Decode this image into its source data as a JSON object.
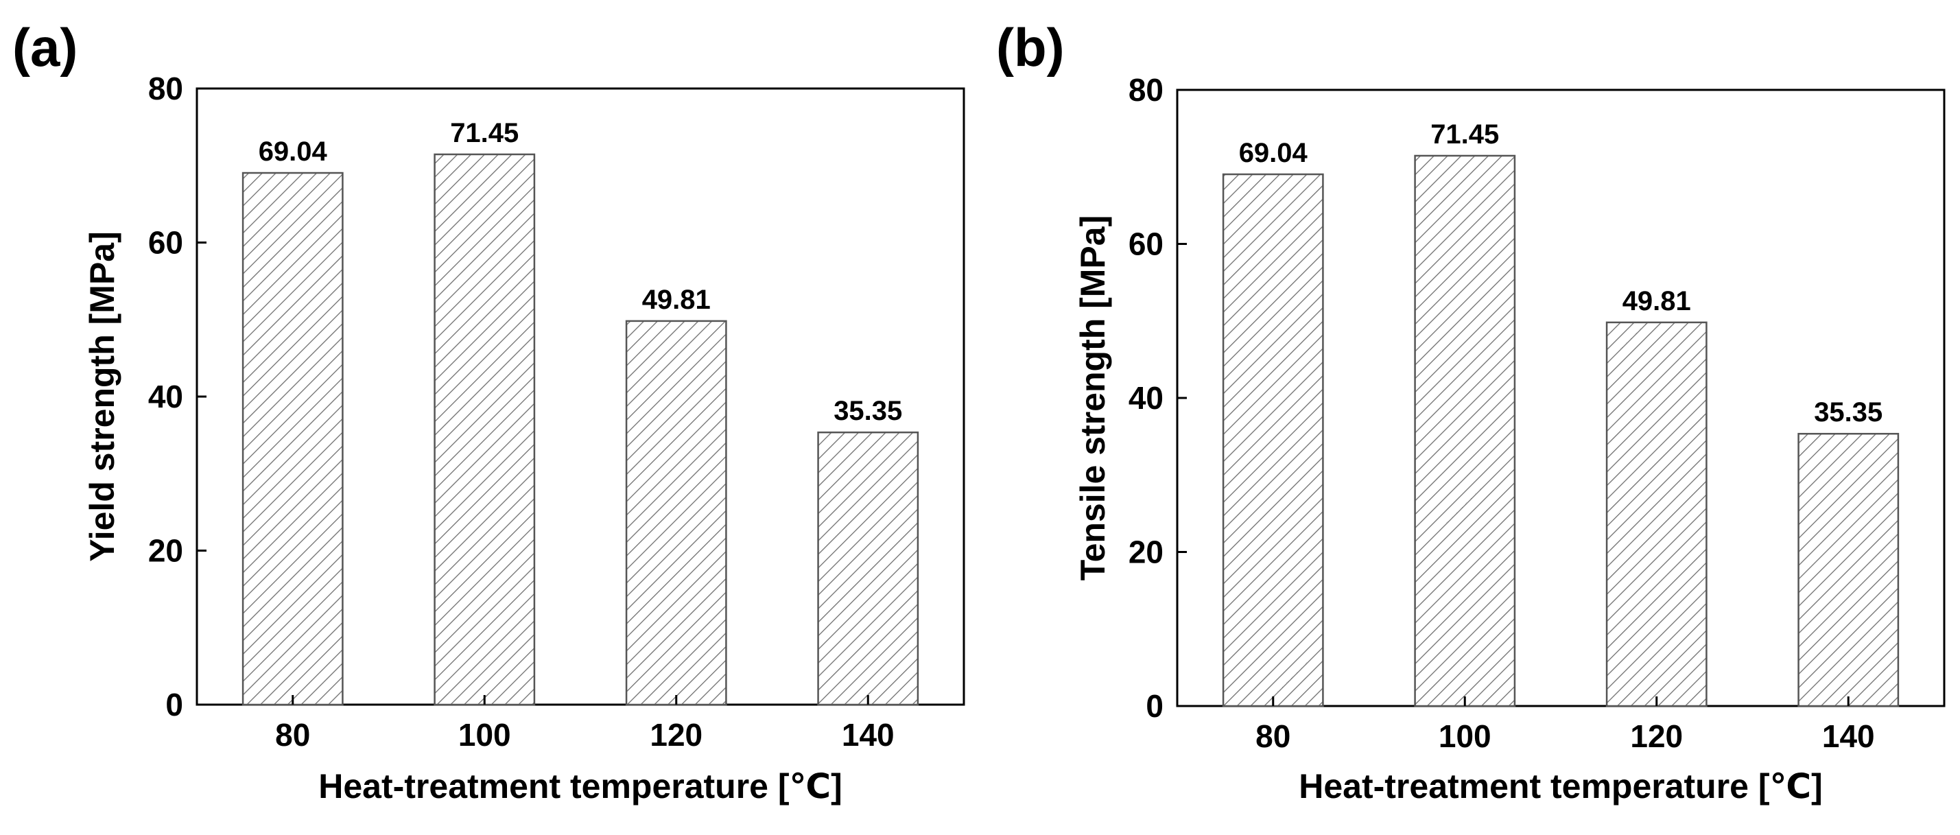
{
  "chart_data": [
    {
      "panel_label": "(a)",
      "type": "bar",
      "title": "",
      "categories": [
        "80",
        "100",
        "120",
        "140"
      ],
      "values": [
        69.04,
        71.45,
        49.81,
        35.35
      ],
      "value_labels": [
        "69.04",
        "71.45",
        "49.81",
        "35.35"
      ],
      "xlabel": "Heat-treatment temperature [℃]",
      "ylabel": "Yield strength [MPa]",
      "ylim": [
        0,
        80
      ],
      "yticks": [
        0,
        20,
        40,
        60,
        80
      ],
      "ytick_labels": [
        "0",
        "20",
        "40",
        "60",
        "80"
      ],
      "grid": false,
      "bar_fill": "hatched",
      "bar_stroke": "#555555"
    },
    {
      "panel_label": "(b)",
      "type": "bar",
      "title": "",
      "categories": [
        "80",
        "100",
        "120",
        "140"
      ],
      "values": [
        69.04,
        71.45,
        49.81,
        35.35
      ],
      "value_labels": [
        "69.04",
        "71.45",
        "49.81",
        "35.35"
      ],
      "xlabel": "Heat-treatment temperature [℃]",
      "ylabel": "Tensile strength [MPa]",
      "ylim": [
        0,
        80
      ],
      "yticks": [
        0,
        20,
        40,
        60,
        80
      ],
      "ytick_labels": [
        "0",
        "20",
        "40",
        "60",
        "80"
      ],
      "grid": false,
      "bar_fill": "hatched",
      "bar_stroke": "#555555"
    }
  ]
}
